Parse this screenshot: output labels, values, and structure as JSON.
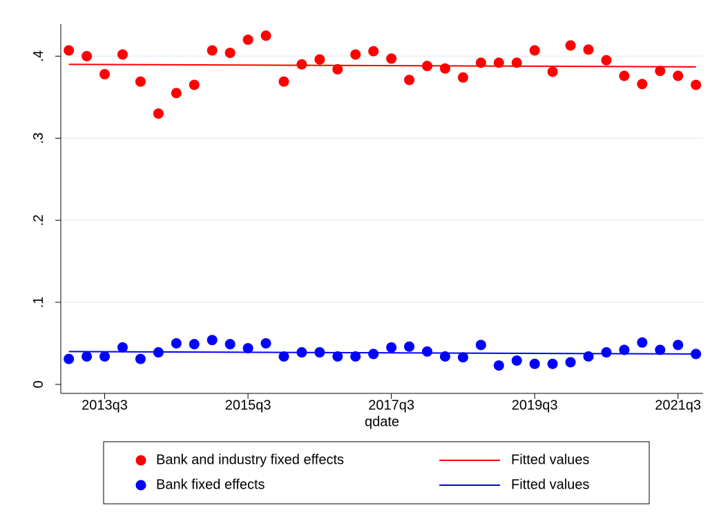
{
  "chart_data": {
    "type": "scatter",
    "x_label": "qdate",
    "x": [
      212,
      213,
      214,
      215,
      216,
      217,
      218,
      219,
      220,
      221,
      222,
      223,
      224,
      225,
      226,
      227,
      228,
      229,
      230,
      231,
      232,
      233,
      234,
      235,
      236,
      237,
      238,
      239,
      240,
      241,
      242,
      243,
      244,
      245,
      246,
      247
    ],
    "xlim": [
      211.55,
      247.4
    ],
    "xticks": [
      {
        "value": 214,
        "label": "2013q3"
      },
      {
        "value": 222,
        "label": "2015q3"
      },
      {
        "value": 230,
        "label": "2017q3"
      },
      {
        "value": 238,
        "label": "2019q3"
      },
      {
        "value": 246,
        "label": "2021q3"
      }
    ],
    "ylim": [
      -0.011,
      0.439
    ],
    "yticks": [
      0,
      {
        "value": 0.1,
        "label": ".1"
      },
      {
        "value": 0.2,
        "label": ".2"
      },
      {
        "value": 0.3,
        "label": ".3"
      },
      {
        "value": 0.4,
        "label": ".4"
      }
    ],
    "grid": true,
    "series": [
      {
        "name": "Bank and industry fixed effects",
        "type": "scatter",
        "color": "#ff0000",
        "values": [
          0.407,
          0.4,
          0.378,
          0.402,
          0.369,
          0.33,
          0.355,
          0.365,
          0.407,
          0.404,
          0.42,
          0.425,
          0.369,
          0.39,
          0.396,
          0.384,
          0.402,
          0.406,
          0.397,
          0.371,
          0.388,
          0.385,
          0.374,
          0.392,
          0.392,
          0.392,
          0.407,
          0.381,
          0.413,
          0.408,
          0.395,
          0.376,
          0.366,
          0.382,
          0.376,
          0.365
        ]
      },
      {
        "name": "Fitted values",
        "type": "line",
        "color": "#ff0000",
        "x": [
          212,
          247
        ],
        "values": [
          0.39,
          0.387
        ]
      },
      {
        "name": "Bank fixed effects",
        "type": "scatter",
        "color": "#0000ff",
        "values": [
          0.031,
          0.034,
          0.034,
          0.045,
          0.031,
          0.039,
          0.05,
          0.049,
          0.054,
          0.049,
          0.044,
          0.05,
          0.034,
          0.039,
          0.039,
          0.034,
          0.034,
          0.037,
          0.045,
          0.046,
          0.04,
          0.034,
          0.033,
          0.048,
          0.023,
          0.029,
          0.025,
          0.025,
          0.027,
          0.034,
          0.039,
          0.042,
          0.051,
          0.042,
          0.048,
          0.037
        ]
      },
      {
        "name": "Fitted values",
        "type": "line",
        "color": "#0000ff",
        "x": [
          212,
          247
        ],
        "values": [
          0.04,
          0.037
        ]
      }
    ]
  }
}
